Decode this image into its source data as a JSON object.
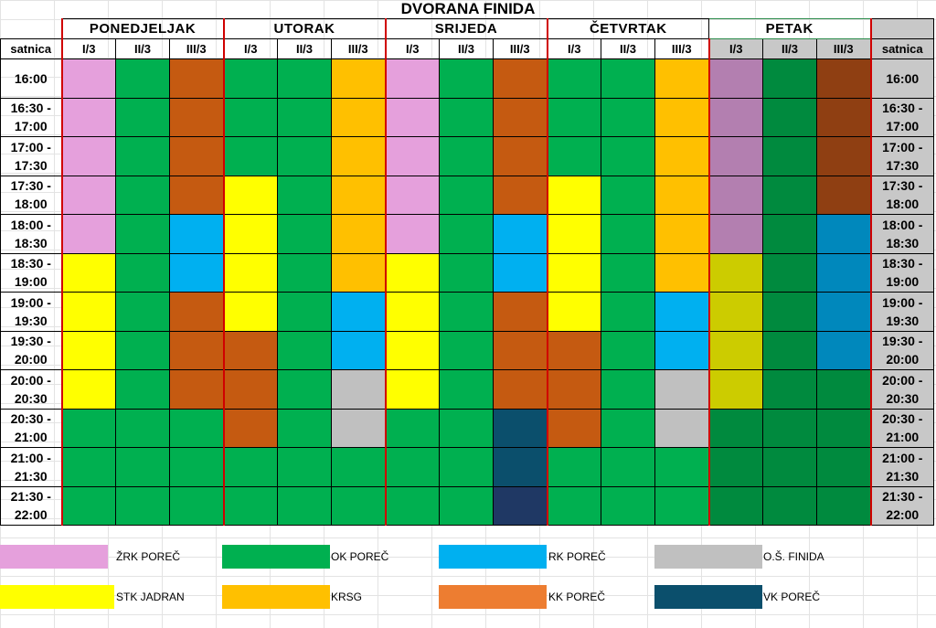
{
  "title": "DVORANA FINIDA",
  "days": [
    "PONEDJELJAK",
    "UTORAK",
    "SRIJEDA",
    "ČETVRTAK",
    "PETAK"
  ],
  "subcolumns": [
    "I/3",
    "II/3",
    "III/3"
  ],
  "satnica_label": "satnica",
  "time_slots": [
    [
      "16:00",
      ""
    ],
    [
      "16:30 -",
      "17:00"
    ],
    [
      "17:00 -",
      "17:30"
    ],
    [
      "17:30 -",
      "18:00"
    ],
    [
      "18:00 -",
      "18:30"
    ],
    [
      "18:30 -",
      "19:00"
    ],
    [
      "19:00 -",
      "19:30"
    ],
    [
      "19:30 -",
      "20:00"
    ],
    [
      "20:00 -",
      "20:30"
    ],
    [
      "20:30 -",
      "21:00"
    ],
    [
      "21:00 -",
      "21:30"
    ],
    [
      "21:30 -",
      "22:00"
    ]
  ],
  "legend": [
    {
      "key": "ZRK",
      "label": "ŽRK POREČ"
    },
    {
      "key": "OK",
      "label": "OK POREČ"
    },
    {
      "key": "RK",
      "label": "RK POREČ"
    },
    {
      "key": "OS",
      "label": "O.Š. FINIDA"
    },
    {
      "key": "STK",
      "label": "STK JADRAN"
    },
    {
      "key": "KRSG",
      "label": "KRSG"
    },
    {
      "key": "KK",
      "label": "KK POREČ"
    },
    {
      "key": "VK",
      "label": "VK POREČ"
    }
  ],
  "colors": {
    "ZRK": "#e5a0dc",
    "OK": "#00b050",
    "RK": "#00b0f0",
    "OS": "#c0c0c0",
    "STK": "#ffff00",
    "KRSG": "#ffc000",
    "KK": "#c55a11",
    "KK_legend": "#ed7d31",
    "VK": "#0b4f6c",
    "VK_last": "#1f3864"
  },
  "petak_colors": {
    "ZRK": "#b37fb0",
    "OK": "#008a3e",
    "RK": "#0088bc",
    "STK": "#cccc00",
    "KK": "#8f3f12"
  },
  "schedule": {
    "PONEDJELJAK": [
      [
        "ZRK",
        "OK",
        "KK"
      ],
      [
        "ZRK",
        "OK",
        "KK"
      ],
      [
        "ZRK",
        "OK",
        "KK"
      ],
      [
        "ZRK",
        "OK",
        "KK"
      ],
      [
        "ZRK",
        "OK",
        "RK"
      ],
      [
        "STK",
        "OK",
        "RK"
      ],
      [
        "STK",
        "OK",
        "KK"
      ],
      [
        "STK",
        "OK",
        "KK"
      ],
      [
        "STK",
        "OK",
        "KK"
      ],
      [
        "OK",
        "OK",
        "OK"
      ],
      [
        "OK",
        "OK",
        "OK"
      ],
      [
        "OK",
        "OK",
        "OK"
      ]
    ],
    "UTORAK": [
      [
        "OK",
        "OK",
        "KRSG"
      ],
      [
        "OK",
        "OK",
        "KRSG"
      ],
      [
        "OK",
        "OK",
        "KRSG"
      ],
      [
        "STK",
        "OK",
        "KRSG"
      ],
      [
        "STK",
        "OK",
        "KRSG"
      ],
      [
        "STK",
        "OK",
        "KRSG"
      ],
      [
        "STK",
        "OK",
        "RK"
      ],
      [
        "KK",
        "OK",
        "RK"
      ],
      [
        "KK",
        "OK",
        "OS"
      ],
      [
        "KK",
        "OK",
        "OS"
      ],
      [
        "OK",
        "OK",
        "OK"
      ],
      [
        "OK",
        "OK",
        "OK"
      ]
    ],
    "SRIJEDA": [
      [
        "ZRK",
        "OK",
        "KK"
      ],
      [
        "ZRK",
        "OK",
        "KK"
      ],
      [
        "ZRK",
        "OK",
        "KK"
      ],
      [
        "ZRK",
        "OK",
        "KK"
      ],
      [
        "ZRK",
        "OK",
        "RK"
      ],
      [
        "STK",
        "OK",
        "RK"
      ],
      [
        "STK",
        "OK",
        "KK"
      ],
      [
        "STK",
        "OK",
        "KK"
      ],
      [
        "STK",
        "OK",
        "KK"
      ],
      [
        "OK",
        "OK",
        "VK"
      ],
      [
        "OK",
        "OK",
        "VK"
      ],
      [
        "OK",
        "OK",
        "VK_last"
      ]
    ],
    "ČETVRTAK": [
      [
        "OK",
        "OK",
        "KRSG"
      ],
      [
        "OK",
        "OK",
        "KRSG"
      ],
      [
        "OK",
        "OK",
        "KRSG"
      ],
      [
        "STK",
        "OK",
        "KRSG"
      ],
      [
        "STK",
        "OK",
        "KRSG"
      ],
      [
        "STK",
        "OK",
        "KRSG"
      ],
      [
        "STK",
        "OK",
        "RK"
      ],
      [
        "KK",
        "OK",
        "RK"
      ],
      [
        "KK",
        "OK",
        "OS"
      ],
      [
        "KK",
        "OK",
        "OS"
      ],
      [
        "OK",
        "OK",
        "OK"
      ],
      [
        "OK",
        "OK",
        "OK"
      ]
    ],
    "PETAK": [
      [
        "ZRK",
        "OK",
        "KK"
      ],
      [
        "ZRK",
        "OK",
        "KK"
      ],
      [
        "ZRK",
        "OK",
        "KK"
      ],
      [
        "ZRK",
        "OK",
        "KK"
      ],
      [
        "ZRK",
        "OK",
        "RK"
      ],
      [
        "STK",
        "OK",
        "RK"
      ],
      [
        "STK",
        "OK",
        "RK"
      ],
      [
        "STK",
        "OK",
        "RK"
      ],
      [
        "STK",
        "OK",
        "OK"
      ],
      [
        "OK",
        "OK",
        "OK"
      ],
      [
        "OK",
        "OK",
        "OK"
      ],
      [
        "OK",
        "OK",
        "OK"
      ]
    ]
  }
}
